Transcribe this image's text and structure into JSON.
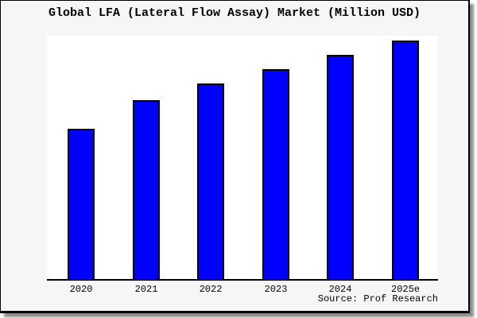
{
  "chart": {
    "title": "Global LFA (Lateral Flow Assay) Market (Million USD)",
    "source_label": "Source: Prof Research",
    "colors": {
      "bar_fill": "#0000ff",
      "bar_border": "#000000",
      "frame_background": "#f6f6f6",
      "plot_background": "#ffffff",
      "axis": "#000000",
      "text": "#000000"
    }
  },
  "chart_data": {
    "type": "bar",
    "title": "Global LFA (Lateral Flow Assay) Market (Million USD)",
    "categories": [
      "2020",
      "2021",
      "2022",
      "2023",
      "2024",
      "2025e"
    ],
    "values": [
      63,
      75,
      82,
      88,
      94,
      100
    ],
    "values_unit": "relative bar height, % of tallest bar (no y-axis scale or data labels shown in image)",
    "xlabel": "",
    "ylabel": "",
    "ylim": [
      0,
      100
    ],
    "grid": false,
    "legend": "none",
    "annotation": "Source: Prof Research"
  }
}
